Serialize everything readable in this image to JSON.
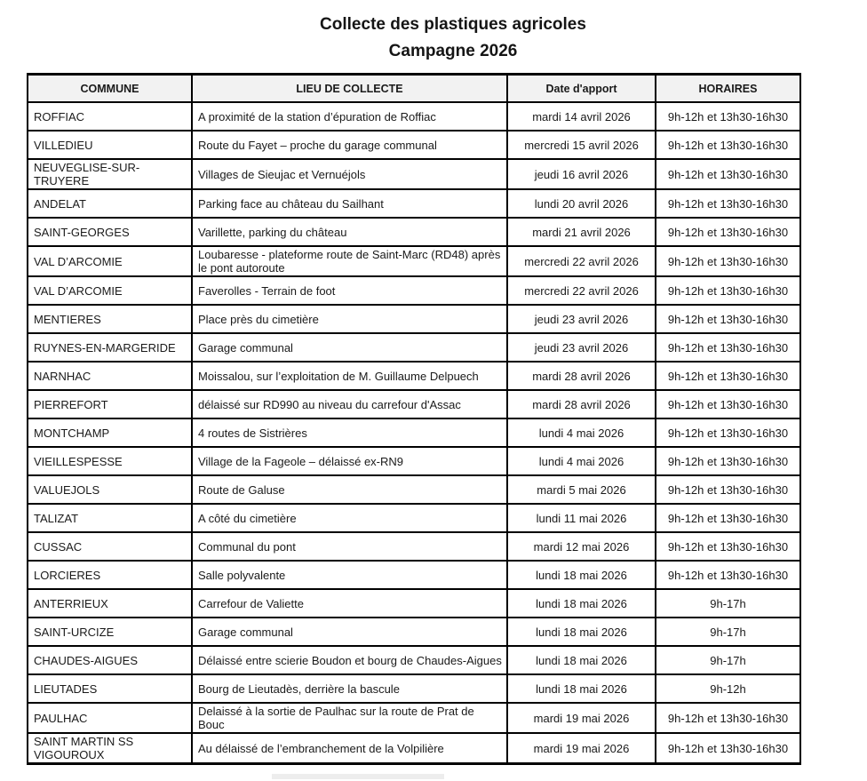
{
  "title": {
    "line1": "Collecte des plastiques agricoles",
    "line2": "Campagne 2026"
  },
  "table": {
    "headers": [
      "COMMUNE",
      "LIEU DE COLLECTE",
      "Date d'apport",
      "HORAIRES"
    ],
    "rows": [
      [
        "ROFFIAC",
        "A proximité de la station d’épuration de Roffiac",
        "mardi 14 avril 2026",
        "9h-12h et 13h30-16h30"
      ],
      [
        "VILLEDIEU",
        "Route du Fayet – proche du garage communal",
        "mercredi 15 avril 2026",
        "9h-12h et 13h30-16h30"
      ],
      [
        "NEUVEGLISE-SUR-TRUYERE",
        "Villages de Sieujac et Vernuéjols",
        "jeudi 16 avril 2026",
        "9h-12h et 13h30-16h30"
      ],
      [
        "ANDELAT",
        "Parking face au château du Sailhant",
        "lundi 20 avril 2026",
        "9h-12h et 13h30-16h30"
      ],
      [
        "SAINT-GEORGES",
        "Varillette, parking du château",
        "mardi 21 avril 2026",
        "9h-12h et 13h30-16h30"
      ],
      [
        "VAL D’ARCOMIE",
        "Loubaresse -  plateforme route de Saint-Marc (RD48) après le pont autoroute",
        "mercredi 22 avril 2026",
        "9h-12h et 13h30-16h30"
      ],
      [
        "VAL D’ARCOMIE",
        "Faverolles - Terrain de foot",
        "mercredi 22 avril 2026",
        "9h-12h et 13h30-16h30"
      ],
      [
        "MENTIERES",
        "Place près du cimetière",
        "jeudi 23 avril 2026",
        "9h-12h et 13h30-16h30"
      ],
      [
        "RUYNES-EN-MARGERIDE",
        "Garage communal",
        "jeudi 23 avril 2026",
        "9h-12h et 13h30-16h30"
      ],
      [
        "NARNHAC",
        "Moissalou, sur l’exploitation de M. Guillaume Delpuech",
        "mardi 28 avril 2026",
        "9h-12h et 13h30-16h30"
      ],
      [
        "PIERREFORT",
        "délaissé sur RD990 au niveau du carrefour d'Assac",
        "mardi 28 avril 2026",
        "9h-12h et 13h30-16h30"
      ],
      [
        "MONTCHAMP",
        "4 routes de Sistrières",
        "lundi 4 mai 2026",
        "9h-12h et 13h30-16h30"
      ],
      [
        "VIEILLESPESSE",
        "Village de la Fageole – délaissé ex-RN9",
        "lundi 4 mai 2026",
        "9h-12h et 13h30-16h30"
      ],
      [
        "VALUEJOLS",
        "Route de Galuse",
        "mardi 5 mai 2026",
        "9h-12h et 13h30-16h30"
      ],
      [
        "TALIZAT",
        "A côté du cimetière",
        "lundi 11 mai 2026",
        "9h-12h et 13h30-16h30"
      ],
      [
        "CUSSAC",
        "Communal du pont",
        "mardi 12 mai 2026",
        "9h-12h et 13h30-16h30"
      ],
      [
        "LORCIERES",
        "Salle polyvalente",
        "lundi 18 mai 2026",
        "9h-12h et 13h30-16h30"
      ],
      [
        "ANTERRIEUX",
        "Carrefour de Valiette",
        "lundi 18 mai 2026",
        "9h-17h"
      ],
      [
        "SAINT-URCIZE",
        "Garage communal",
        "lundi 18 mai 2026",
        "9h-17h"
      ],
      [
        "CHAUDES-AIGUES",
        "Délaissé entre scierie Boudon et bourg de Chaudes-Aigues",
        "lundi 18 mai 2026",
        "9h-17h"
      ],
      [
        "LIEUTADES",
        "Bourg de Lieutadès, derrière la bascule",
        "lundi 18 mai 2026",
        "9h-12h"
      ],
      [
        "PAULHAC",
        "Delaissé à la sortie de Paulhac sur la route de Prat de Bouc",
        "mardi 19 mai 2026",
        "9h-12h et 13h30-16h30"
      ],
      [
        "SAINT MARTIN SS VIGOUROUX",
        "Au délaissé de l’embranchement de la Volpilière",
        "mardi 19 mai 2026",
        "9h-12h et 13h30-16h30"
      ]
    ]
  }
}
